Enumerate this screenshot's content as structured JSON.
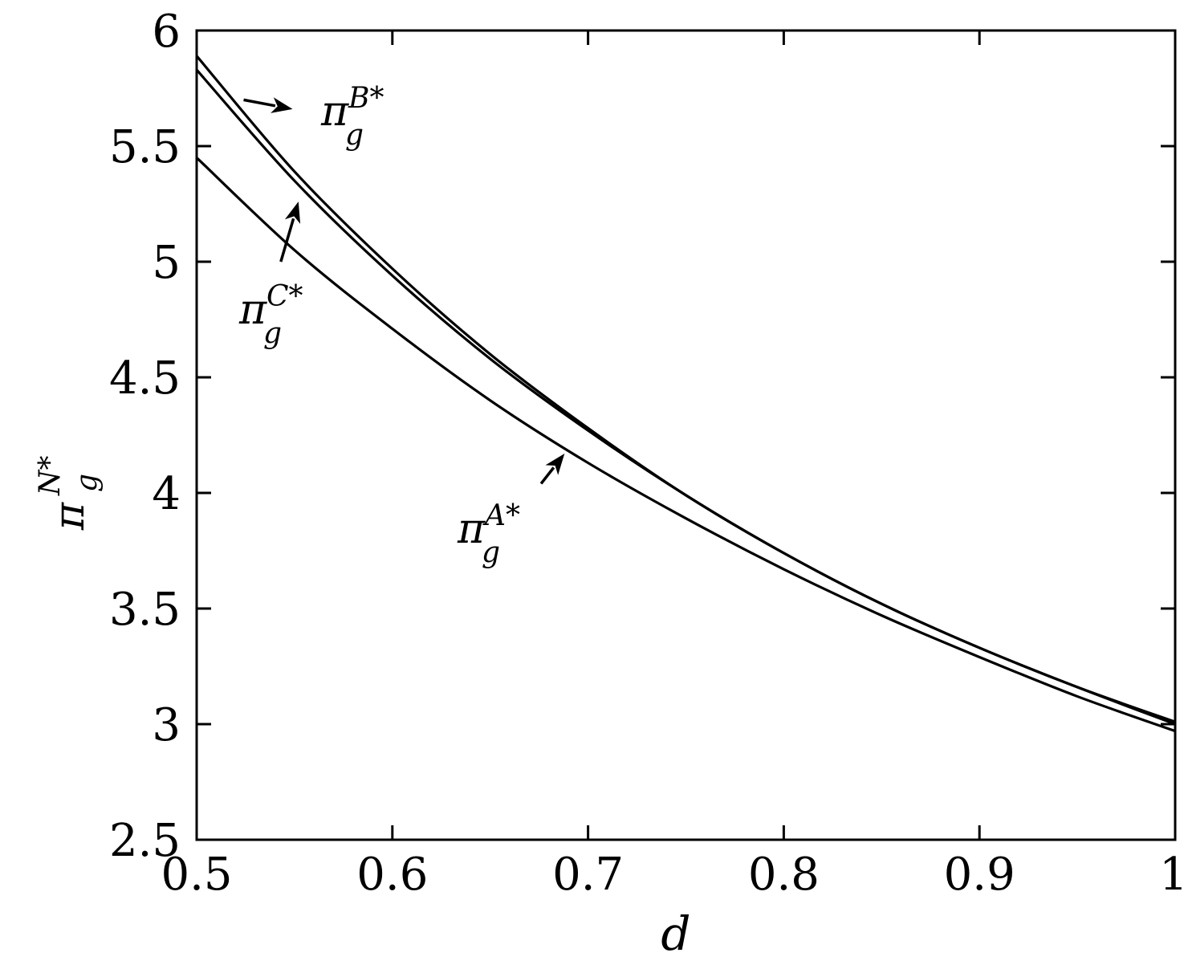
{
  "chart_data": {
    "type": "line",
    "xlabel": "d",
    "ylabel": {
      "base": "π",
      "sup": "N*",
      "sub": "g"
    },
    "xlim": [
      0.5,
      1.0
    ],
    "ylim": [
      2.5,
      6.0
    ],
    "xticks": [
      0.5,
      0.6,
      0.7,
      0.8,
      0.9,
      1.0
    ],
    "xtick_labels": [
      "0.5",
      "0.6",
      "0.7",
      "0.8",
      "0.9",
      "1"
    ],
    "yticks": [
      2.5,
      3.0,
      3.5,
      4.0,
      4.5,
      5.0,
      5.5,
      6.0
    ],
    "ytick_labels": [
      "2.5",
      "3",
      "3.5",
      "4",
      "4.5",
      "5",
      "5.5",
      "6"
    ],
    "grid": false,
    "legend": "none",
    "line_color": "#000000",
    "series": [
      {
        "x": [
          0.5,
          0.55,
          0.6,
          0.65,
          0.7,
          0.75,
          0.8,
          0.85,
          0.9,
          0.95,
          1.0
        ],
        "y": [
          5.89,
          5.39,
          4.97,
          4.6,
          4.28,
          3.99,
          3.74,
          3.52,
          3.33,
          3.16,
          3.01
        ]
      },
      {
        "x": [
          0.5,
          0.55,
          0.6,
          0.65,
          0.7,
          0.75,
          0.8,
          0.85,
          0.9,
          0.95,
          1.0
        ],
        "y": [
          5.83,
          5.35,
          4.94,
          4.58,
          4.27,
          3.99,
          3.74,
          3.52,
          3.33,
          3.16,
          3.0
        ]
      },
      {
        "x": [
          0.5,
          0.55,
          0.6,
          0.65,
          0.7,
          0.75,
          0.8,
          0.85,
          0.9,
          0.95,
          1.0
        ],
        "y": [
          5.45,
          5.05,
          4.71,
          4.4,
          4.13,
          3.89,
          3.67,
          3.47,
          3.29,
          3.12,
          2.97
        ]
      }
    ],
    "annotations": [
      {
        "base": "π",
        "sup": "B*",
        "sub": "g",
        "arrow_tail": [
          0.524,
          5.7
        ],
        "arrow_head": [
          0.549,
          5.66
        ]
      },
      {
        "base": "π",
        "sup": "C*",
        "sub": "g",
        "arrow_tail": [
          0.543,
          5.0
        ],
        "arrow_head": [
          0.552,
          5.26
        ]
      },
      {
        "base": "π",
        "sup": "A*",
        "sub": "g",
        "arrow_tail": [
          0.676,
          4.04
        ],
        "arrow_head": [
          0.688,
          4.17
        ]
      }
    ]
  }
}
